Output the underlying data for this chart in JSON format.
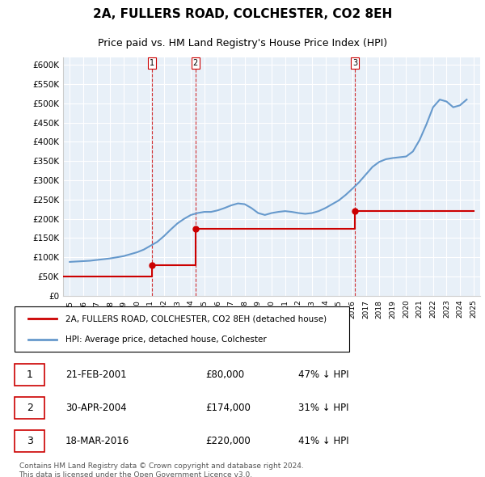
{
  "title": "2A, FULLERS ROAD, COLCHESTER, CO2 8EH",
  "subtitle": "Price paid vs. HM Land Registry's House Price Index (HPI)",
  "ylabel_ticks": [
    "£0",
    "£50K",
    "£100K",
    "£150K",
    "£200K",
    "£250K",
    "£300K",
    "£350K",
    "£400K",
    "£450K",
    "£500K",
    "£550K",
    "£600K"
  ],
  "ytick_values": [
    0,
    50000,
    100000,
    150000,
    200000,
    250000,
    300000,
    350000,
    400000,
    450000,
    500000,
    550000,
    600000
  ],
  "xlim_start": 1994.5,
  "xlim_end": 2025.5,
  "ylim_min": 0,
  "ylim_max": 620000,
  "background_color": "#ffffff",
  "plot_bg_color": "#e8f0f8",
  "grid_color": "#ffffff",
  "sale_color": "#cc0000",
  "hpi_color": "#6699cc",
  "sale_label": "2A, FULLERS ROAD, COLCHESTER, CO2 8EH (detached house)",
  "hpi_label": "HPI: Average price, detached house, Colchester",
  "transactions": [
    {
      "label": "1",
      "date": "21-FEB-2001",
      "price": 80000,
      "pct": "47% ↓ HPI",
      "year": 2001.13
    },
    {
      "label": "2",
      "date": "30-APR-2004",
      "price": 174000,
      "pct": "31% ↓ HPI",
      "year": 2004.33
    },
    {
      "label": "3",
      "date": "18-MAR-2016",
      "price": 220000,
      "pct": "41% ↓ HPI",
      "year": 2016.21
    }
  ],
  "footer": "Contains HM Land Registry data © Crown copyright and database right 2024.\nThis data is licensed under the Open Government Licence v3.0.",
  "hpi_data": {
    "years": [
      1995,
      1995.5,
      1996,
      1996.5,
      1997,
      1997.5,
      1998,
      1998.5,
      1999,
      1999.5,
      2000,
      2000.5,
      2001,
      2001.5,
      2002,
      2002.5,
      2003,
      2003.5,
      2004,
      2004.5,
      2005,
      2005.5,
      2006,
      2006.5,
      2007,
      2007.5,
      2008,
      2008.5,
      2009,
      2009.5,
      2010,
      2010.5,
      2011,
      2011.5,
      2012,
      2012.5,
      2013,
      2013.5,
      2014,
      2014.5,
      2015,
      2015.5,
      2016,
      2016.5,
      2017,
      2017.5,
      2018,
      2018.5,
      2019,
      2019.5,
      2020,
      2020.5,
      2021,
      2021.5,
      2022,
      2022.5,
      2023,
      2023.5,
      2024,
      2024.5
    ],
    "values": [
      88000,
      89000,
      90000,
      91000,
      93000,
      95000,
      97000,
      100000,
      103000,
      108000,
      113000,
      120000,
      130000,
      140000,
      155000,
      172000,
      188000,
      200000,
      210000,
      215000,
      218000,
      218000,
      222000,
      228000,
      235000,
      240000,
      238000,
      228000,
      215000,
      210000,
      215000,
      218000,
      220000,
      218000,
      215000,
      213000,
      215000,
      220000,
      228000,
      238000,
      248000,
      262000,
      278000,
      295000,
      315000,
      335000,
      348000,
      355000,
      358000,
      360000,
      362000,
      375000,
      405000,
      445000,
      490000,
      510000,
      505000,
      490000,
      495000,
      510000
    ]
  },
  "sale_line_data": {
    "years": [
      1994.5,
      2001.13,
      2001.13,
      2004.33,
      2004.33,
      2016.21,
      2016.21,
      2025.0
    ],
    "values": [
      50000,
      50000,
      80000,
      80000,
      174000,
      174000,
      220000,
      220000
    ]
  },
  "transaction_vline_years": [
    2001.13,
    2004.33,
    2016.21
  ],
  "sale_marker_points": [
    {
      "year": 2001.13,
      "value": 80000
    },
    {
      "year": 2004.33,
      "value": 174000
    },
    {
      "year": 2016.21,
      "value": 220000
    }
  ]
}
